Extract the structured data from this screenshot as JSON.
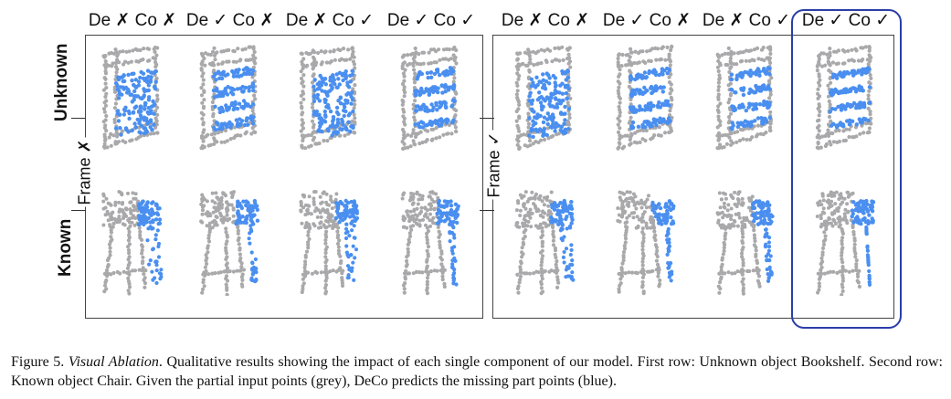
{
  "figure": {
    "headers_left": [
      "De ✗ Co ✗",
      "De ✓ Co ✗",
      "De ✗ Co ✓",
      "De ✓ Co ✓"
    ],
    "headers_right": [
      "De ✗ Co ✗",
      "De ✓ Co ✗",
      "De ✗ Co ✓",
      "De ✓ Co ✓"
    ],
    "row_labels": {
      "unknown": "Unknown",
      "known": "Known"
    },
    "panel_labels": {
      "left": "Frame ✗",
      "right": "Frame ✓"
    },
    "colors": {
      "input_points": "#a9a9ab",
      "predicted_points": "#4a8ff0",
      "highlight_border": "#2a3ea8"
    }
  },
  "caption": {
    "prefix": "Figure 5.",
    "title": "Visual Ablation",
    "body": ". Qualitative results showing the impact of each single component of our model. First row: Unknown object Bookshelf. Second row: Known object Chair. Given the partial input points (grey), DeCo predicts the missing part points (blue)."
  }
}
